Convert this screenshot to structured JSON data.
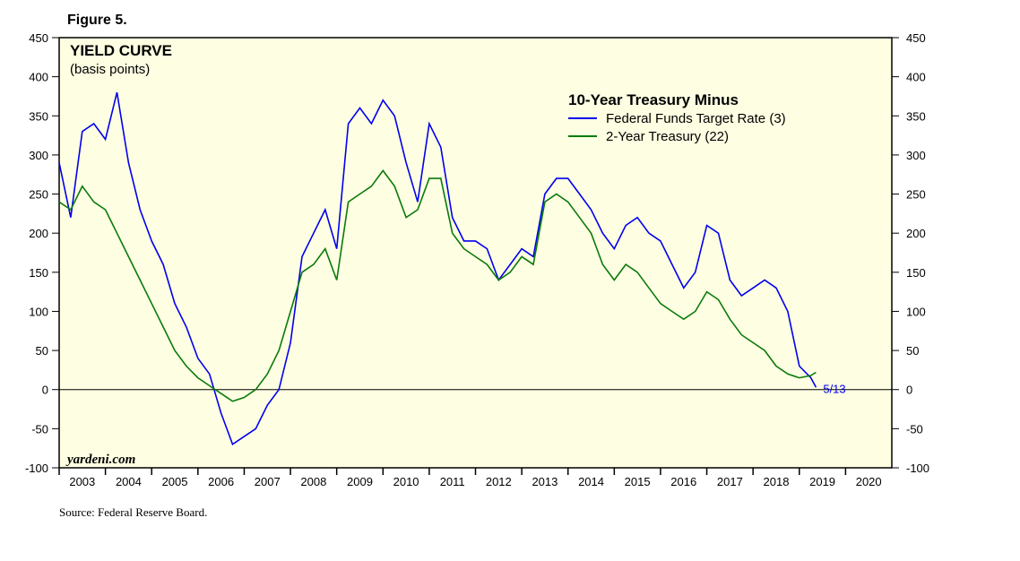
{
  "chart_data": {
    "type": "line",
    "figure_label": "Figure 5.",
    "title": "YIELD CURVE",
    "subtitle": "(basis points)",
    "legend_title": "10-Year Treasury Minus",
    "annotation": "5/13",
    "watermark": "yardeni.com",
    "source": "Source: Federal Reserve Board.",
    "x": [
      2003.0,
      2003.25,
      2003.5,
      2003.75,
      2004.0,
      2004.25,
      2004.5,
      2004.75,
      2005.0,
      2005.25,
      2005.5,
      2005.75,
      2006.0,
      2006.25,
      2006.5,
      2006.75,
      2007.0,
      2007.25,
      2007.5,
      2007.75,
      2008.0,
      2008.25,
      2008.5,
      2008.75,
      2009.0,
      2009.25,
      2009.5,
      2009.75,
      2010.0,
      2010.25,
      2010.5,
      2010.75,
      2011.0,
      2011.25,
      2011.5,
      2011.75,
      2012.0,
      2012.25,
      2012.5,
      2012.75,
      2013.0,
      2013.25,
      2013.5,
      2013.75,
      2014.0,
      2014.25,
      2014.5,
      2014.75,
      2015.0,
      2015.25,
      2015.5,
      2015.75,
      2016.0,
      2016.25,
      2016.5,
      2016.75,
      2017.0,
      2017.25,
      2017.5,
      2017.75,
      2018.0,
      2018.25,
      2018.5,
      2018.75,
      2019.0,
      2019.25,
      2019.36
    ],
    "series": [
      {
        "name": "Federal Funds Target Rate (3)",
        "color": "#0000ee",
        "values": [
          290,
          220,
          330,
          340,
          320,
          380,
          290,
          230,
          190,
          160,
          110,
          80,
          40,
          20,
          -30,
          -70,
          -60,
          -50,
          -20,
          0,
          60,
          170,
          200,
          230,
          180,
          340,
          360,
          340,
          370,
          350,
          290,
          240,
          340,
          310,
          220,
          190,
          190,
          180,
          140,
          160,
          180,
          170,
          250,
          270,
          270,
          250,
          230,
          200,
          180,
          210,
          220,
          200,
          190,
          160,
          130,
          150,
          210,
          200,
          140,
          120,
          130,
          140,
          130,
          100,
          30,
          15,
          3
        ]
      },
      {
        "name": "2-Year Treasury (22)",
        "color": "#0a7a0a",
        "values": [
          240,
          230,
          260,
          240,
          230,
          200,
          170,
          140,
          110,
          80,
          50,
          30,
          15,
          5,
          -5,
          -15,
          -10,
          0,
          20,
          50,
          100,
          150,
          160,
          180,
          140,
          240,
          250,
          260,
          280,
          260,
          220,
          230,
          270,
          270,
          200,
          180,
          170,
          160,
          140,
          150,
          170,
          160,
          240,
          250,
          240,
          220,
          200,
          160,
          140,
          160,
          150,
          130,
          110,
          100,
          90,
          100,
          125,
          115,
          90,
          70,
          60,
          50,
          30,
          20,
          15,
          18,
          22
        ]
      }
    ],
    "xlim": [
      2003,
      2021
    ],
    "xticks": [
      2003,
      2004,
      2005,
      2006,
      2007,
      2008,
      2009,
      2010,
      2011,
      2012,
      2013,
      2014,
      2015,
      2016,
      2017,
      2018,
      2019,
      2020
    ],
    "ylim": [
      -100,
      450
    ],
    "yticks": [
      -100,
      -50,
      0,
      50,
      100,
      150,
      200,
      250,
      300,
      350,
      400,
      450
    ],
    "background": "#fefee2"
  }
}
